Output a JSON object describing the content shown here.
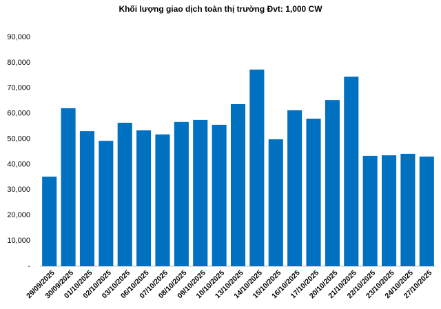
{
  "chart_data": {
    "type": "bar",
    "title": "Khối lượng giao dịch toàn thị trường Đvt: 1,000 CW",
    "categories": [
      "29/09/2025",
      "30/09/2025",
      "01/10/2025",
      "02/10/2025",
      "03/10/2025",
      "06/10/2025",
      "07/10/2025",
      "08/10/2025",
      "09/10/2025",
      "10/10/2025",
      "13/10/2025",
      "14/10/2025",
      "15/10/2025",
      "16/10/2025",
      "17/10/2025",
      "20/10/2025",
      "21/10/2025",
      "22/10/2025",
      "23/10/2025",
      "24/10/2025",
      "27/10/2025"
    ],
    "values": [
      35200,
      62100,
      53100,
      49300,
      56400,
      53400,
      51800,
      56700,
      57500,
      55600,
      63700,
      77300,
      49900,
      61300,
      58000,
      65300,
      74500,
      43400,
      43600,
      44200,
      43100
    ],
    "color": "#0070c0",
    "ylim": [
      0,
      90000
    ],
    "yticks": [
      {
        "value": 0,
        "label": "-"
      },
      {
        "value": 10000,
        "label": "10,000"
      },
      {
        "value": 20000,
        "label": "20,000"
      },
      {
        "value": 30000,
        "label": "30,000"
      },
      {
        "value": 40000,
        "label": "40,000"
      },
      {
        "value": 50000,
        "label": "50,000"
      },
      {
        "value": 60000,
        "label": "60,000"
      },
      {
        "value": 70000,
        "label": "70,000"
      },
      {
        "value": 80000,
        "label": "80,000"
      },
      {
        "value": 90000,
        "label": "90,000"
      }
    ],
    "grid": false
  }
}
